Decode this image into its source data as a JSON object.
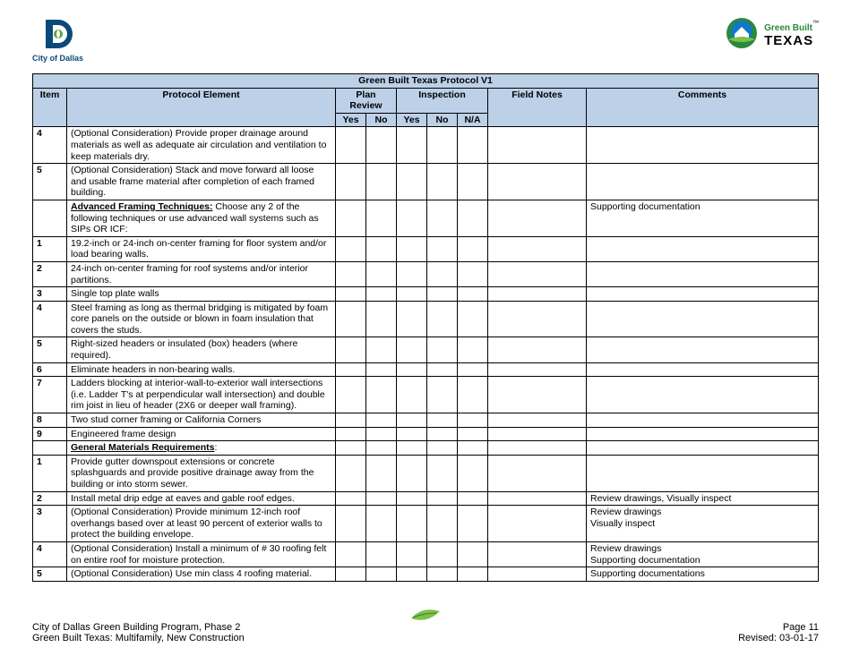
{
  "header": {
    "city_label": "City of Dallas",
    "gb_label": "Green Built",
    "tx_label": "TEXAS",
    "tm": "™"
  },
  "table": {
    "title": "Green Built Texas Protocol V1",
    "columns": {
      "item": "Item",
      "element": "Protocol Element",
      "plan_review": "Plan Review",
      "inspection": "Inspection",
      "yes": "Yes",
      "no": "No",
      "na": "N/A",
      "field_notes": "Field Notes",
      "comments": "Comments"
    },
    "rows": [
      {
        "item": "4",
        "element": "(Optional Consideration) Provide proper drainage around materials as well as adequate air circulation and ventilation to keep materials dry.",
        "comments": ""
      },
      {
        "item": "5",
        "element": "(Optional Consideration) Stack and move forward all loose and usable frame material after completion of each framed building.",
        "comments": ""
      },
      {
        "item": "",
        "element_head": "Advanced Framing Techniques:",
        "element_tail": " Choose any 2 of the following techniques or use advanced wall systems such as SIPs OR ICF:",
        "comments": "Supporting documentation"
      },
      {
        "item": "1",
        "element": "19.2-inch or 24-inch on-center framing for floor system and/or load bearing walls.",
        "comments": ""
      },
      {
        "item": "2",
        "element": "24-inch on-center framing for roof systems and/or interior partitions.",
        "comments": ""
      },
      {
        "item": "3",
        "element": "Single top plate walls",
        "comments": ""
      },
      {
        "item": "4",
        "element": "Steel framing as long as thermal bridging is mitigated by foam core panels on the outside or blown in foam insulation that covers the studs.",
        "comments": ""
      },
      {
        "item": "5",
        "element": "Right-sized headers or insulated (box) headers (where required).",
        "comments": ""
      },
      {
        "item": "6",
        "element": "Eliminate headers in non-bearing walls.",
        "comments": ""
      },
      {
        "item": "7",
        "element": "Ladders blocking at interior-wall-to-exterior wall intersections (i.e. Ladder T's at perpendicular wall intersection) and double rim joist in lieu of header (2X6 or deeper wall framing).",
        "comments": ""
      },
      {
        "item": "8",
        "element": "Two stud corner framing or California Corners",
        "comments": ""
      },
      {
        "item": "9",
        "element": "Engineered frame design",
        "comments": ""
      },
      {
        "item": "",
        "element_head": "General Materials Requirements",
        "element_tail": ":",
        "comments": ""
      },
      {
        "item": "1",
        "element": "Provide gutter downspout extensions or concrete splashguards and provide positive drainage away from the building or into storm sewer.",
        "comments": ""
      },
      {
        "item": "2",
        "element": "Install metal drip edge at eaves and gable roof edges.",
        "comments": "Review drawings, Visually inspect"
      },
      {
        "item": "3",
        "element": "(Optional Consideration) Provide minimum 12-inch roof overhangs based over at least 90 percent of exterior walls to protect the building envelope.",
        "comments": "Review drawings\nVisually inspect"
      },
      {
        "item": "4",
        "element": "(Optional Consideration) Install a minimum of # 30 roofing felt on entire roof for moisture protection.",
        "comments": "Review drawings\nSupporting documentation"
      },
      {
        "item": "5",
        "element": "(Optional Consideration) Use min class 4 roofing material.",
        "comments": "Supporting documentations"
      }
    ]
  },
  "footer": {
    "line1": "City of Dallas Green Building Program, Phase 2",
    "line2": "Green Built Texas: Multifamily, New Construction",
    "page": "Page 11",
    "revised": "Revised:  03-01-17"
  },
  "colors": {
    "header_bg": "#bcd1e8",
    "city_blue": "#0a4a7a",
    "green": "#2a8a3a",
    "leaf": "#5aa341"
  }
}
